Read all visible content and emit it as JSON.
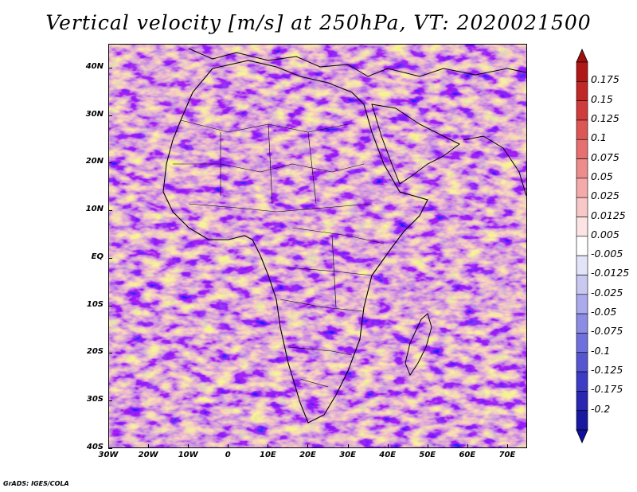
{
  "title": "Vertical velocity [m/s] at 250hPa, VT: 2020021500",
  "credit": "GrADS: IGES/COLA",
  "map": {
    "lat_labels": [
      "40N",
      "30N",
      "20N",
      "10N",
      "EQ",
      "10S",
      "20S",
      "30S",
      "40S"
    ],
    "lon_labels": [
      "30W",
      "20W",
      "10W",
      "0",
      "10E",
      "20E",
      "30E",
      "40E",
      "50E",
      "60E",
      "70E"
    ],
    "lat_range": [
      -40,
      45
    ],
    "lon_range": [
      -30,
      75
    ],
    "field": "vertical velocity",
    "units": "m/s",
    "level": "250hPa"
  },
  "colorbar": {
    "labels": [
      "0.175",
      "0.15",
      "0.125",
      "0.1",
      "0.075",
      "0.05",
      "0.025",
      "0.0125",
      "0.005",
      "-0.005",
      "-0.0125",
      "-0.025",
      "-0.05",
      "-0.075",
      "-0.1",
      "-0.125",
      "-0.175",
      "-0.2"
    ],
    "colors": [
      "#b01818",
      "#c02828",
      "#d03c3c",
      "#dc5656",
      "#e67070",
      "#ee8c8c",
      "#f4aaaa",
      "#f8c8c8",
      "#fce4e4",
      "#ffffff",
      "#e4e4f8",
      "#c8c8f0",
      "#aaaaec",
      "#8c8ce4",
      "#7070dc",
      "#5656d0",
      "#3c3cc4",
      "#2828b0",
      "#1818a0"
    ],
    "top_arrow_color": "#a01010",
    "bottom_arrow_color": "#1010a0"
  }
}
